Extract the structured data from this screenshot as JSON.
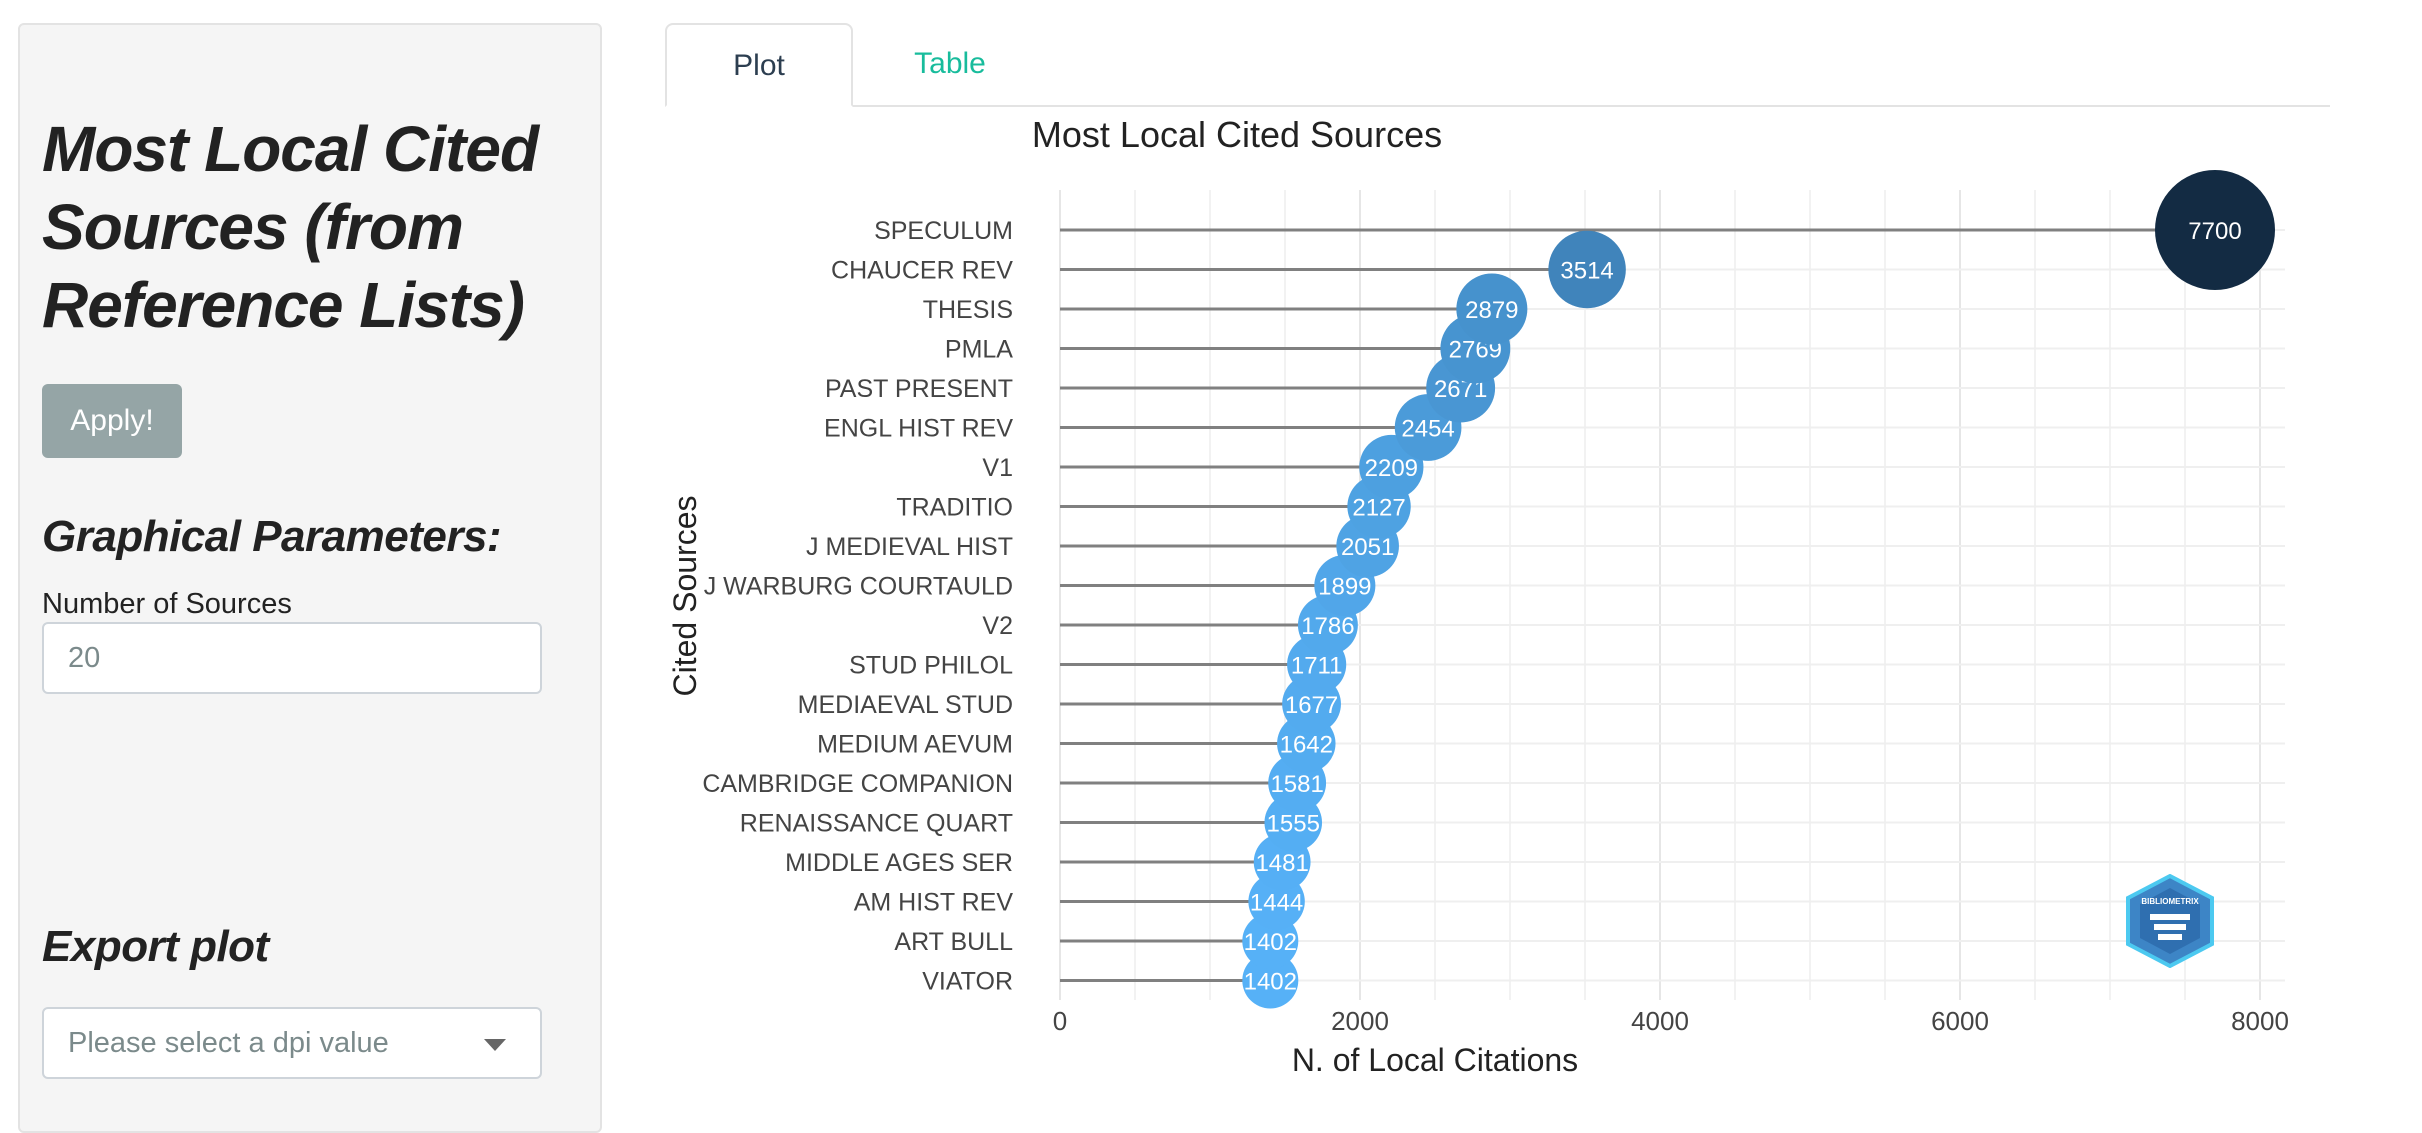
{
  "sidebar": {
    "title": "Most Local Cited Sources (from Reference Lists)",
    "apply_label": "Apply!",
    "graphical_heading": "Graphical Parameters:",
    "num_sources_label": "Number of Sources",
    "num_sources_value": "20",
    "export_heading": "Export plot",
    "dpi_placeholder": "Please select a dpi value"
  },
  "tabs": [
    {
      "label": "Plot",
      "active": true
    },
    {
      "label": "Table",
      "active": false
    }
  ],
  "colors": {
    "accent": "#18bc9c",
    "dark": "#132b43",
    "light": "#56b1f7"
  },
  "chart_data": {
    "type": "lollipop",
    "title": "Most Local Cited Sources",
    "xlabel": "N. of Local Citations",
    "ylabel": "Cited Sources",
    "xlim": [
      0,
      8000
    ],
    "xticks": [
      0,
      2000,
      4000,
      6000,
      8000
    ],
    "categories": [
      "SPECULUM",
      "CHAUCER REV",
      "THESIS",
      "PMLA",
      "PAST PRESENT",
      "ENGL HIST REV",
      "V1",
      "TRADITIO",
      "J MEDIEVAL HIST",
      "J WARBURG COURTAULD",
      "V2",
      "STUD PHILOL",
      "MEDIAEVAL STUD",
      "MEDIUM AEVUM",
      "CAMBRIDGE COMPANION",
      "RENAISSANCE QUART",
      "MIDDLE AGES SER",
      "AM HIST REV",
      "ART BULL",
      "VIATOR"
    ],
    "values": [
      7700,
      3514,
      2879,
      2769,
      2671,
      2454,
      2209,
      2127,
      2051,
      1899,
      1786,
      1711,
      1677,
      1642,
      1581,
      1555,
      1481,
      1444,
      1402,
      1402
    ],
    "logo_text": "BIBLIOMETRIX"
  }
}
